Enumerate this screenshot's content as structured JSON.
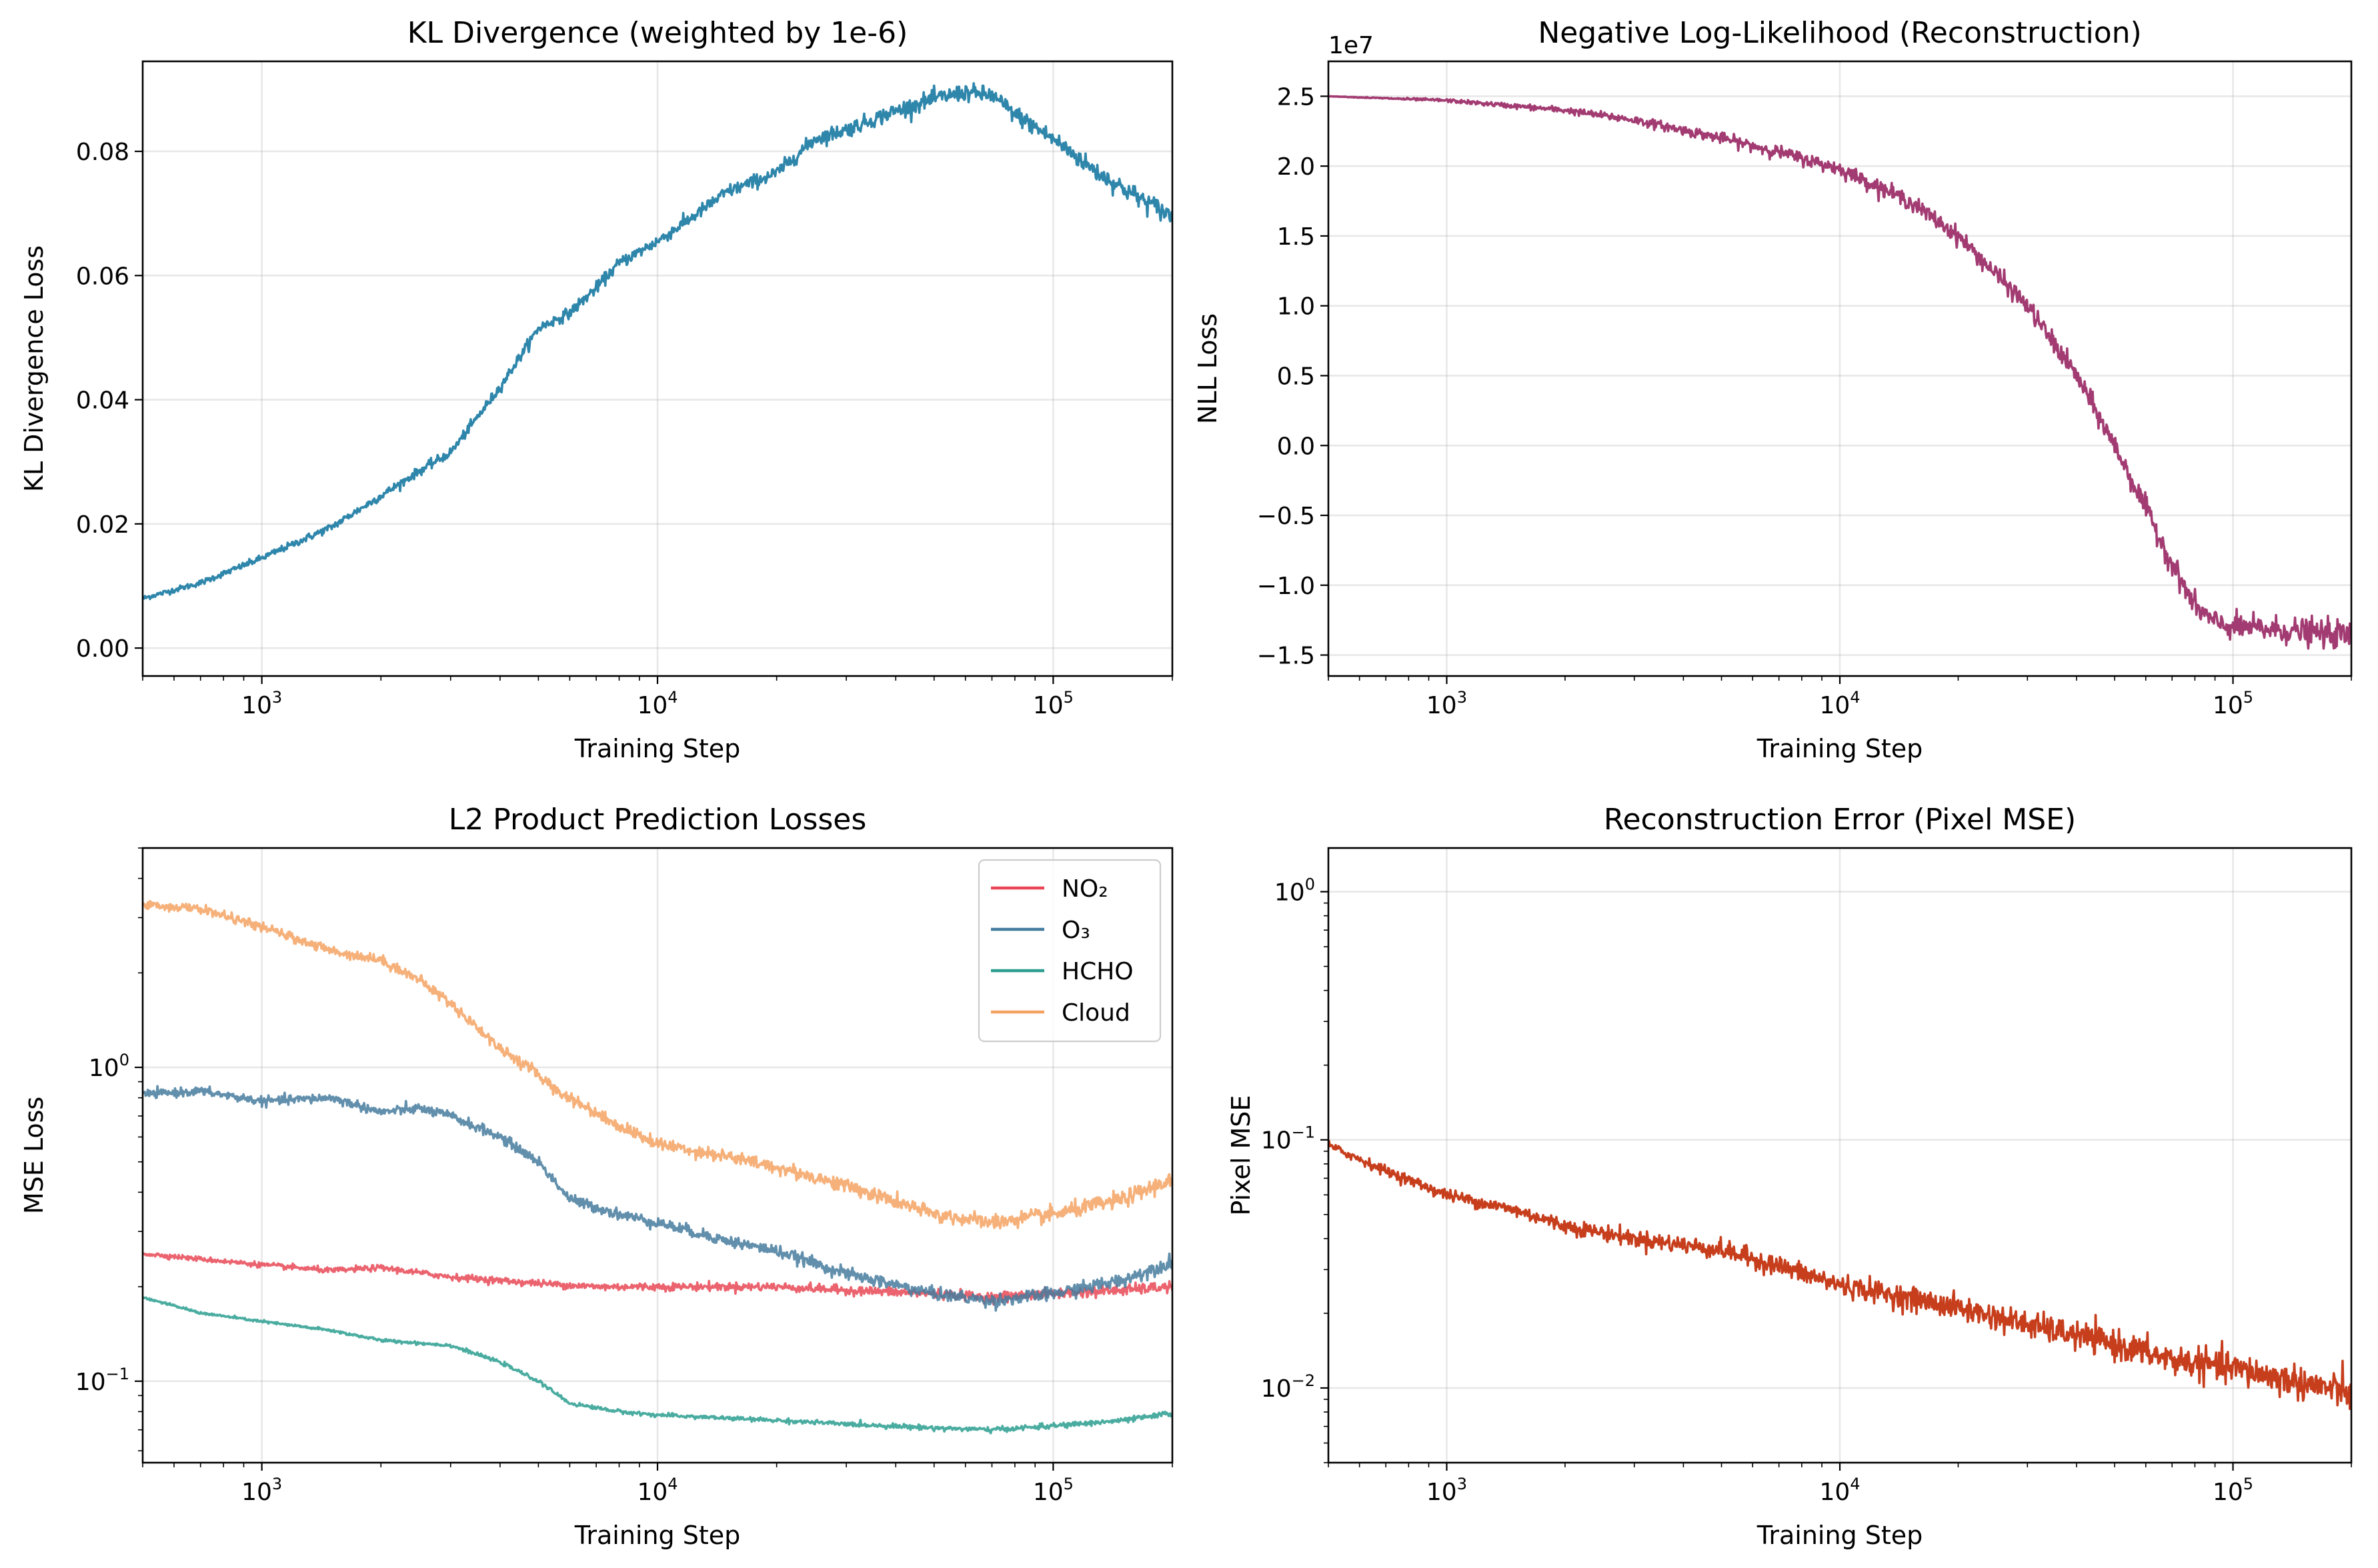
{
  "chart_data": [
    {
      "id": "kl",
      "type": "line",
      "title": "KL Divergence (weighted by 1e-6)",
      "xlabel": "Training Step",
      "ylabel": "KL Divergence Loss",
      "xscale": "log",
      "yscale": "linear",
      "xlim": [
        500,
        200000
      ],
      "ylim": [
        -0.0045,
        0.0945
      ],
      "yticks": [
        0.0,
        0.02,
        0.04,
        0.06,
        0.08
      ],
      "ytick_labels": [
        "0.00",
        "0.02",
        "0.04",
        "0.06",
        "0.08"
      ],
      "xticks": [
        1000,
        10000,
        100000
      ],
      "xtick_labels": [
        [
          "10",
          "3"
        ],
        [
          "10",
          "4"
        ],
        [
          "10",
          "5"
        ]
      ],
      "grid": true,
      "offset_text": "",
      "series": [
        {
          "color": "#2e86ab",
          "x": [
            500,
            700,
            1000,
            1500,
            2000,
            2500,
            3000,
            4000,
            5000,
            6000,
            7000,
            8000,
            10000,
            12000,
            15000,
            20000,
            25000,
            30000,
            40000,
            50000,
            60000,
            70000,
            80000,
            100000,
            130000,
            160000,
            200000
          ],
          "y": [
            0.008,
            0.0105,
            0.0145,
            0.0195,
            0.0245,
            0.0285,
            0.0315,
            0.042,
            0.0515,
            0.054,
            0.058,
            0.062,
            0.0655,
            0.069,
            0.0735,
            0.0765,
            0.082,
            0.0835,
            0.0865,
            0.0885,
            0.0895,
            0.089,
            0.086,
            0.082,
            0.0765,
            0.073,
            0.0695
          ],
          "noise": [
            0.0002,
            0.0008
          ]
        }
      ]
    },
    {
      "id": "nll",
      "type": "line",
      "title": "Negative Log-Likelihood (Reconstruction)",
      "xlabel": "Training Step",
      "ylabel": "NLL Loss",
      "xscale": "log",
      "yscale": "linear",
      "xlim": [
        500,
        200000
      ],
      "ylim": [
        -16500000,
        27500000
      ],
      "yticks": [
        -15000000,
        -10000000,
        -5000000,
        0,
        5000000,
        10000000,
        15000000,
        20000000,
        25000000
      ],
      "ytick_labels": [
        "−1.5",
        "−1.0",
        "−0.5",
        "0.0",
        "0.5",
        "1.0",
        "1.5",
        "2.0",
        "2.5"
      ],
      "xticks": [
        1000,
        10000,
        100000
      ],
      "xtick_labels": [
        [
          "10",
          "3"
        ],
        [
          "10",
          "4"
        ],
        [
          "10",
          "5"
        ]
      ],
      "grid": true,
      "offset_text": "1e7",
      "series": [
        {
          "color": "#a23b72",
          "x": [
            500,
            1000,
            2000,
            3000,
            5000,
            7000,
            10000,
            15000,
            20000,
            30000,
            40000,
            50000,
            60000,
            70000,
            80000,
            90000,
            100000,
            130000,
            200000
          ],
          "y": [
            25000000,
            24700000,
            24000000,
            23300000,
            22000000,
            21000000,
            19800000,
            17500000,
            15000000,
            10000000,
            5000000,
            0,
            -4500000,
            -8500000,
            -11500000,
            -12700000,
            -13000000,
            -13200000,
            -13600000
          ],
          "noise": [
            0,
            500000
          ]
        }
      ]
    },
    {
      "id": "l2",
      "type": "line",
      "title": "L2 Product Prediction Losses",
      "xlabel": "Training Step",
      "ylabel": "MSE Loss",
      "xscale": "log",
      "yscale": "log",
      "xlim": [
        500,
        200000
      ],
      "ylim": [
        0.055,
        5.0
      ],
      "yticks": [
        0.1,
        1.0
      ],
      "ytick_labels": [
        [
          "10",
          "−1"
        ],
        [
          "10",
          "0"
        ]
      ],
      "xticks": [
        1000,
        10000,
        100000
      ],
      "xtick_labels": [
        [
          "10",
          "3"
        ],
        [
          "10",
          "4"
        ],
        [
          "10",
          "5"
        ]
      ],
      "grid": true,
      "offset_text": "",
      "legend": "top-right",
      "series": [
        {
          "name": "NO₂",
          "color": "#e84855",
          "x": [
            500,
            700,
            1000,
            1500,
            2000,
            3000,
            5000,
            7000,
            10000,
            20000,
            30000,
            50000,
            70000,
            100000,
            150000,
            200000
          ],
          "y": [
            0.255,
            0.245,
            0.235,
            0.225,
            0.23,
            0.215,
            0.205,
            0.2,
            0.2,
            0.2,
            0.195,
            0.19,
            0.185,
            0.19,
            0.195,
            0.2
          ],
          "noise": [
            0.008,
            0.02
          ]
        },
        {
          "name": "O₃",
          "color": "#457b9d",
          "x": [
            500,
            700,
            1000,
            1500,
            2000,
            2500,
            3000,
            4000,
            5000,
            6000,
            8000,
            10000,
            15000,
            20000,
            30000,
            50000,
            70000,
            100000,
            150000,
            200000
          ],
          "y": [
            0.82,
            0.84,
            0.78,
            0.8,
            0.72,
            0.74,
            0.7,
            0.6,
            0.5,
            0.38,
            0.34,
            0.32,
            0.28,
            0.26,
            0.22,
            0.19,
            0.18,
            0.19,
            0.21,
            0.24
          ],
          "noise": [
            0.015,
            0.025
          ]
        },
        {
          "name": "HCHO",
          "color": "#2a9d8f",
          "x": [
            500,
            700,
            1000,
            1500,
            2000,
            3000,
            4000,
            5000,
            6000,
            8000,
            10000,
            20000,
            30000,
            50000,
            70000,
            100000,
            150000,
            200000
          ],
          "y": [
            0.185,
            0.165,
            0.155,
            0.145,
            0.135,
            0.13,
            0.115,
            0.1,
            0.085,
            0.08,
            0.078,
            0.075,
            0.073,
            0.071,
            0.07,
            0.072,
            0.075,
            0.079
          ],
          "noise": [
            0.004,
            0.01
          ]
        },
        {
          "name": "Cloud",
          "color": "#f4a261",
          "x": [
            500,
            700,
            1000,
            1300,
            1500,
            2000,
            2500,
            3000,
            4000,
            5000,
            5500,
            6000,
            8000,
            10000,
            15000,
            20000,
            30000,
            50000,
            70000,
            100000,
            150000,
            200000
          ],
          "y": [
            3.3,
            3.2,
            2.8,
            2.5,
            2.35,
            2.2,
            1.9,
            1.6,
            1.15,
            0.95,
            0.85,
            0.8,
            0.65,
            0.57,
            0.52,
            0.48,
            0.42,
            0.34,
            0.32,
            0.34,
            0.38,
            0.44
          ],
          "noise": [
            0.015,
            0.03
          ]
        }
      ]
    },
    {
      "id": "mse",
      "type": "line",
      "title": "Reconstruction Error (Pixel MSE)",
      "xlabel": "Training Step",
      "ylabel": "Pixel MSE",
      "xscale": "log",
      "yscale": "log",
      "xlim": [
        500,
        200000
      ],
      "ylim": [
        0.005,
        1.5
      ],
      "yticks": [
        0.01,
        0.1,
        1.0
      ],
      "ytick_labels": [
        [
          "10",
          "−2"
        ],
        [
          "10",
          "−1"
        ],
        [
          "10",
          "0"
        ]
      ],
      "xticks": [
        1000,
        10000,
        100000
      ],
      "xtick_labels": [
        [
          "10",
          "3"
        ],
        [
          "10",
          "4"
        ],
        [
          "10",
          "5"
        ]
      ],
      "grid": true,
      "offset_text": "",
      "series": [
        {
          "color": "#c73e1d",
          "x": [
            500,
            700,
            1000,
            1500,
            2000,
            3000,
            5000,
            7000,
            10000,
            15000,
            20000,
            30000,
            50000,
            70000,
            100000,
            150000,
            200000
          ],
          "y": [
            0.095,
            0.075,
            0.06,
            0.052,
            0.045,
            0.04,
            0.036,
            0.031,
            0.026,
            0.023,
            0.021,
            0.018,
            0.015,
            0.013,
            0.012,
            0.0105,
            0.0095
          ],
          "noise": [
            0.02,
            0.08
          ]
        }
      ]
    }
  ]
}
